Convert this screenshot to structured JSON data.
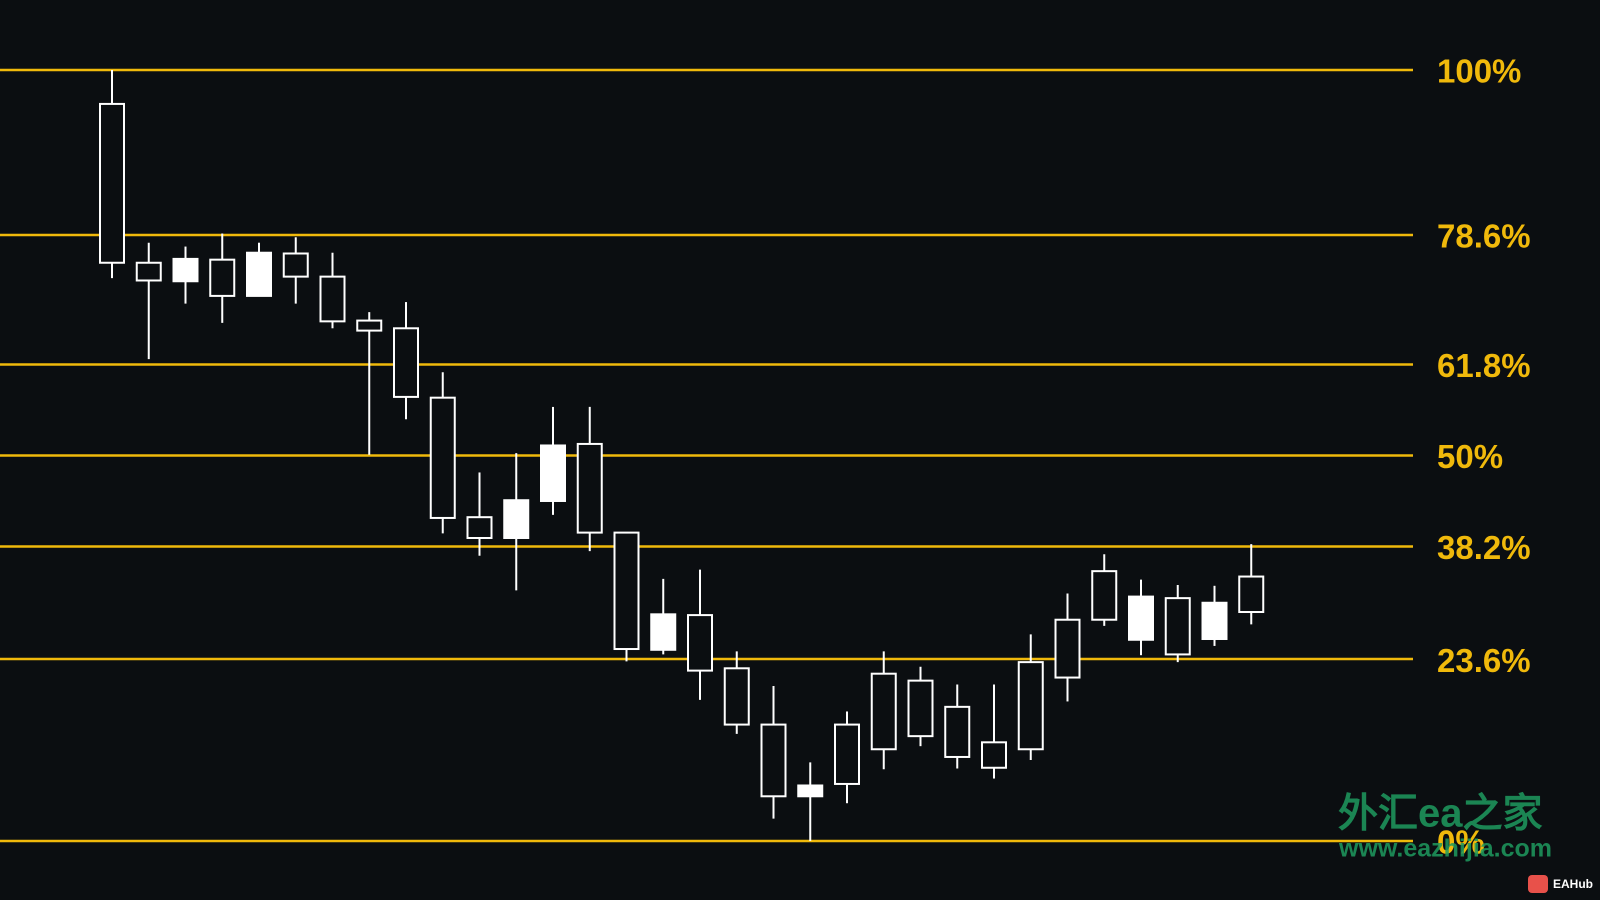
{
  "chart_data": {
    "type": "candlestick",
    "level_color": "#f0b90b",
    "up_fill": "#0b0e11",
    "down_fill": "#ffffff",
    "candle_stroke": "#ffffff",
    "ylim": [
      0,
      100
    ],
    "levels": [
      {
        "value": 100,
        "label": "100%"
      },
      {
        "value": 78.6,
        "label": "78.6%"
      },
      {
        "value": 61.8,
        "label": "61.8%"
      },
      {
        "value": 50,
        "label": "50%"
      },
      {
        "value": 38.2,
        "label": "38.2%"
      },
      {
        "value": 23.6,
        "label": "23.6%"
      },
      {
        "value": 0,
        "label": "0%"
      }
    ],
    "open": [
      75.0,
      72.7,
      75.5,
      70.7,
      76.3,
      73.2,
      67.4,
      66.2,
      57.6,
      41.9,
      39.3,
      44.2,
      51.3,
      40.0,
      24.9,
      29.4,
      22.1,
      15.1,
      5.8,
      7.2,
      7.4,
      11.9,
      13.6,
      10.9,
      9.5,
      11.9,
      21.2,
      28.7,
      31.7,
      24.2,
      30.9,
      29.7
    ],
    "high": [
      100,
      77.6,
      77.1,
      78.8,
      77.6,
      78.3,
      76.3,
      68.6,
      69.9,
      60.8,
      47.8,
      50.3,
      56.3,
      56.3,
      40.0,
      34.0,
      35.2,
      24.6,
      20.1,
      10.2,
      16.8,
      24.6,
      22.6,
      20.3,
      20.3,
      26.8,
      32.1,
      37.2,
      33.9,
      33.2,
      33.1,
      38.5
    ],
    "low": [
      73.0,
      62.5,
      69.7,
      67.2,
      70.7,
      69.7,
      66.5,
      50.1,
      54.7,
      39.9,
      37.0,
      32.5,
      42.3,
      37.6,
      23.3,
      24.2,
      18.3,
      13.9,
      2.9,
      0,
      4.9,
      9.3,
      12.3,
      9.4,
      8.1,
      10.5,
      18.1,
      27.9,
      24.1,
      23.2,
      25.3,
      28.1
    ],
    "close": [
      95.6,
      75.0,
      72.6,
      75.4,
      70.7,
      76.2,
      73.2,
      67.5,
      66.5,
      57.5,
      42.0,
      39.3,
      44.1,
      51.5,
      40.0,
      24.8,
      29.3,
      22.4,
      15.1,
      5.8,
      15.1,
      21.7,
      20.8,
      17.4,
      12.8,
      23.2,
      28.7,
      35.0,
      26.1,
      31.5,
      26.2,
      34.3
    ]
  },
  "watermark": {
    "brand": "外汇ea之家",
    "url": "www.eazhijia.com",
    "badge": "EAHub"
  }
}
